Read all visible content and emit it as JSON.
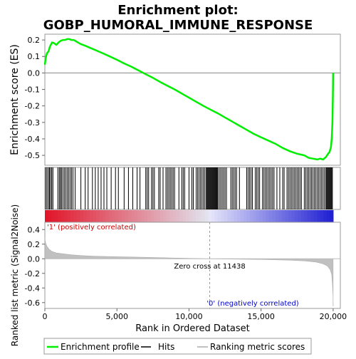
{
  "chart_data": {
    "type": "line",
    "title": "Enrichment plot: GOBP_HUMORAL_IMMUNE_RESPONSE",
    "title_lines": [
      "Enrichment plot:",
      "GOBP_HUMORAL_IMMUNE_RESPONSE"
    ],
    "xlabel": "Rank in Ordered Dataset",
    "xlim": [
      0,
      20500
    ],
    "x_ticks": [
      0,
      5000,
      10000,
      15000,
      20000
    ],
    "x_tick_labels": [
      "0",
      "5,000",
      "10,000",
      "15,000",
      "20,000"
    ],
    "es_panel": {
      "ylabel": "Enrichment score (ES)",
      "ylim": [
        -0.56,
        0.235
      ],
      "y_ticks": [
        0.2,
        0.1,
        0.0,
        -0.1,
        -0.2,
        -0.3,
        -0.4,
        -0.5
      ],
      "y_tick_labels": [
        "0.2",
        "0.1",
        "0.0",
        "-0.1",
        "-0.2",
        "-0.3",
        "-0.4",
        "-0.5"
      ],
      "series": [
        {
          "name": "Enrichment profile",
          "color": "#00ee00",
          "x": [
            0,
            60,
            150,
            250,
            350,
            500,
            650,
            800,
            950,
            1100,
            1250,
            1400,
            1550,
            1700,
            1850,
            2000,
            2200,
            2500,
            2800,
            3200,
            3600,
            4000,
            4500,
            5000,
            5500,
            6000,
            6500,
            7000,
            7500,
            8000,
            8500,
            9000,
            9500,
            10000,
            10500,
            11000,
            11438,
            12000,
            12500,
            13000,
            13500,
            14000,
            14500,
            15000,
            15500,
            16000,
            16500,
            17000,
            17500,
            18000,
            18300,
            18600,
            18900,
            19100,
            19300,
            19500,
            19650,
            19750,
            19850,
            19900,
            19950,
            19980,
            20000
          ],
          "values": [
            0.05,
            0.09,
            0.12,
            0.13,
            0.16,
            0.185,
            0.18,
            0.17,
            0.185,
            0.195,
            0.2,
            0.2,
            0.205,
            0.205,
            0.2,
            0.2,
            0.19,
            0.175,
            0.165,
            0.15,
            0.135,
            0.12,
            0.1,
            0.08,
            0.058,
            0.038,
            0.015,
            -0.008,
            -0.03,
            -0.055,
            -0.078,
            -0.1,
            -0.125,
            -0.15,
            -0.175,
            -0.2,
            -0.22,
            -0.245,
            -0.27,
            -0.295,
            -0.32,
            -0.345,
            -0.37,
            -0.39,
            -0.41,
            -0.43,
            -0.455,
            -0.475,
            -0.49,
            -0.5,
            -0.515,
            -0.52,
            -0.525,
            -0.52,
            -0.525,
            -0.51,
            -0.49,
            -0.48,
            -0.45,
            -0.4,
            -0.3,
            -0.15,
            0.0
          ]
        }
      ]
    },
    "hits": [
      60,
      150,
      250,
      320,
      400,
      480,
      560,
      900,
      1000,
      1080,
      1150,
      1250,
      1350,
      1450,
      1550,
      1650,
      1750,
      1850,
      1950,
      2100,
      2500,
      2800,
      3000,
      3300,
      3500,
      3700,
      3900,
      4100,
      4300,
      4600,
      4900,
      5100,
      5500,
      5800,
      6100,
      6400,
      6600,
      7000,
      7100,
      7200,
      7400,
      7500,
      7600,
      7900,
      8000,
      8200,
      8400,
      8500,
      8600,
      8700,
      8800,
      8900,
      9000,
      9300,
      9500,
      9600,
      9700,
      10000,
      10200,
      10300,
      10500,
      10600,
      10700,
      10800,
      10900,
      11000,
      11100,
      11200,
      11250,
      11300,
      11350,
      11400,
      11450,
      11500,
      11550,
      11600,
      11650,
      11700,
      11750,
      11800,
      11850,
      11900,
      11950,
      12000,
      12100,
      12200,
      12300,
      12400,
      12500,
      12600,
      12900,
      13000,
      13100,
      13200,
      13300,
      13500,
      14000,
      14100,
      14200,
      14300,
      14400,
      14600,
      14700,
      14800,
      14900,
      15100,
      15200,
      15300,
      15400,
      15500,
      15600,
      15700,
      15800,
      15900,
      16100,
      16300,
      16500,
      16600,
      16800,
      16900,
      17000,
      17100,
      17200,
      17300,
      17400,
      17500,
      17600,
      17700,
      17800,
      18000,
      18100,
      18200,
      18300,
      18400,
      18500,
      18600,
      18700,
      18800,
      18900,
      19000,
      19100,
      19200,
      19300,
      19400,
      19500,
      19550,
      19600,
      19650,
      19700,
      19750,
      19800,
      19850,
      19900,
      19950
    ],
    "ranked_metric": {
      "ylabel": "Ranked list metric (Signal2Noise)",
      "ylim": [
        -0.68,
        0.5
      ],
      "y_ticks": [
        0.4,
        0.2,
        0.0,
        -0.2,
        -0.4,
        -0.6
      ],
      "y_tick_labels": [
        "0.4",
        "0.2",
        "0.0",
        "-0.2",
        "-0.4",
        "-0.6"
      ],
      "x": [
        0,
        50,
        150,
        300,
        500,
        800,
        1200,
        1800,
        2500,
        3500,
        5000,
        7000,
        9000,
        11438,
        13000,
        15000,
        17000,
        18000,
        18800,
        19300,
        19600,
        19800,
        19900,
        19950,
        19990,
        20000
      ],
      "values": [
        0.28,
        0.22,
        0.17,
        0.13,
        0.1,
        0.08,
        0.07,
        0.055,
        0.045,
        0.035,
        0.028,
        0.02,
        0.01,
        0.0,
        -0.005,
        -0.01,
        -0.02,
        -0.03,
        -0.045,
        -0.07,
        -0.1,
        -0.15,
        -0.22,
        -0.35,
        -0.5,
        -0.65
      ],
      "color": "#c0c0c0"
    },
    "zero_cross_label": "Zero cross at 11438",
    "zero_cross_rank": 11438,
    "pos_label": "'1' (positively correlated)",
    "neg_label": "'0' (negatively correlated)",
    "pos_color": "#cc0000",
    "neg_color": "#0000cc",
    "legend": {
      "placement": "bottom",
      "entries": [
        {
          "label": "Enrichment profile",
          "color": "#00ee00"
        },
        {
          "label": "Hits",
          "color": "#000000"
        },
        {
          "label": "Ranking metric scores",
          "color": "#c0c0c0"
        }
      ]
    },
    "grid": false
  }
}
